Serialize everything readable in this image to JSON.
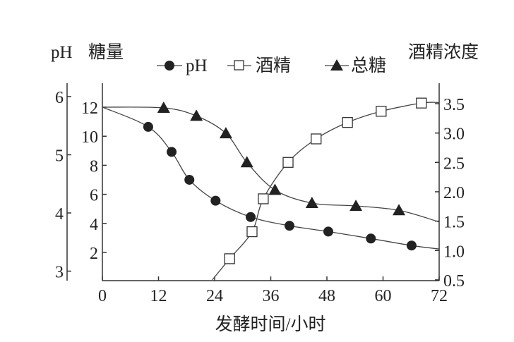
{
  "chart_data": {
    "type": "line",
    "xlabel": "发酵时间/小时",
    "x_ticks": [
      "0",
      "12",
      "24",
      "36",
      "48",
      "60",
      "72"
    ],
    "xlim": [
      0,
      72
    ],
    "axes": {
      "ph": {
        "title": "pH",
        "ticks": [
          "3",
          "4",
          "5",
          "6"
        ],
        "ylim": [
          2.8,
          6.2
        ]
      },
      "sugar": {
        "title": "糖量",
        "ticks": [
          "2",
          "4",
          "6",
          "8",
          "10",
          "12"
        ],
        "ylim": [
          0,
          12.7
        ]
      },
      "alcohol": {
        "title": "酒精浓度",
        "ticks": [
          "0.5",
          "1.0",
          "1.5",
          "2.0",
          "2.5",
          "3.0",
          "3.5"
        ],
        "ylim": [
          0.5,
          3.8
        ]
      }
    },
    "legend": {
      "position": "top",
      "items": [
        "pH",
        "酒精",
        "总糖"
      ]
    },
    "grid": false,
    "series": [
      {
        "name": "pH",
        "axis": "ph",
        "marker": "filled-circle",
        "x": [
          9.8,
          14.8,
          18.6,
          24.2,
          31.7,
          40,
          48.3,
          57.4,
          66.1
        ],
        "y": [
          5.48,
          5.05,
          4.57,
          4.21,
          3.93,
          3.78,
          3.68,
          3.56,
          3.44
        ],
        "line_start": [
          0,
          5.82
        ],
        "line_end": [
          72,
          3.38
        ]
      },
      {
        "name": "酒精",
        "axis": "alcohol",
        "marker": "open-square",
        "x": [
          27.2,
          32,
          34.4,
          39.7,
          45.7,
          52.4,
          59.6,
          68.2
        ],
        "y": [
          0.86,
          1.32,
          1.88,
          2.5,
          2.9,
          3.18,
          3.37,
          3.51
        ],
        "line_start": [
          23.5,
          0.5
        ],
        "line_end": [
          72,
          3.52
        ]
      },
      {
        "name": "总糖",
        "axis": "sugar",
        "marker": "filled-triangle",
        "x": [
          13.1,
          20.1,
          26.4,
          30.9,
          36.9,
          44.8,
          54.2,
          63.4
        ],
        "y": [
          11.95,
          11.4,
          10.2,
          8.2,
          6.3,
          5.4,
          5.2,
          4.9
        ],
        "line_start": [
          0,
          12
        ],
        "line_end": [
          72,
          4.1
        ]
      }
    ]
  }
}
